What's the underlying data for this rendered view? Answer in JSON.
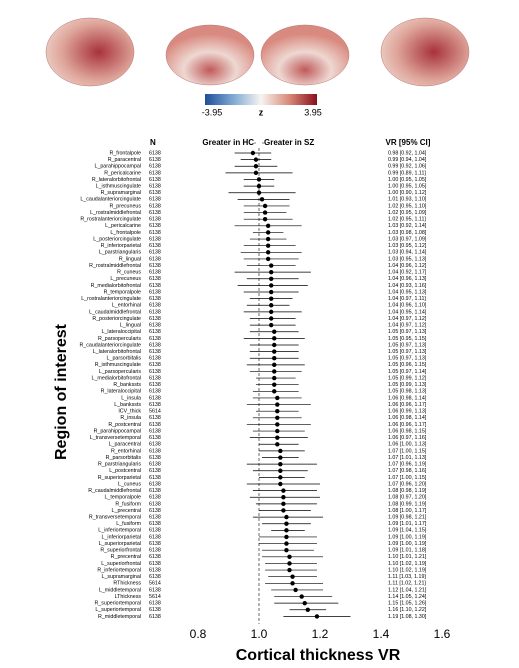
{
  "chart_data": {
    "type": "forest",
    "n_header": "N",
    "left_header": "Greater in HC",
    "right_header": "Greater in SZ",
    "ci_header": "VR [95% CI]",
    "ylabel": "Region of interest",
    "xlabel": "Cortical thickness VR",
    "colorbar": {
      "min": -3.95,
      "max": 3.95,
      "label": "z"
    },
    "xlim": [
      0.7,
      1.6
    ],
    "xticks": [
      0.8,
      {
        "value": 1,
        "label": "1.0"
      },
      1.2,
      1.4,
      1.6
    ],
    "refline": 1,
    "color": "#000000",
    "categories": [
      "R_frontalpole",
      "R_paracentral",
      "L_parahippocampal",
      "R_pericalcarine",
      "R_lateralorbitofrontal",
      "L_isthmuscingulate",
      "R_supramarginal",
      "L_caudalanteriorcingulate",
      "R_precuneus",
      "L_rostralmiddlefrontal",
      "R_rostralanteriorcingulate",
      "L_pericalcarine",
      "L_frontalpole",
      "L_posteriorcingulate",
      "R_inferiorparietal",
      "L_parstriangularis",
      "R_lingual",
      "R_rostralmiddlefrontal",
      "R_cuneus",
      "L_precuneus",
      "R_medialorbitofrontal",
      "R_temporalpole",
      "L_rostralanteriorcingulate",
      "L_entorhinal",
      "L_caudalmiddlefrontal",
      "R_posteriorcingulate",
      "L_lingual",
      "L_lateraloccipital",
      "R_parsopercularis",
      "R_caudalanteriorcingulate",
      "L_lateralorbitofrontal",
      "L_parsorbitalis",
      "R_isthmuscingulate",
      "L_parsopercularis",
      "L_medialorbitofrontal",
      "R_bankssts",
      "R_lateraloccipital",
      "L_insula",
      "L_bankssts",
      "ICV_thick",
      "R_insula",
      "R_postcentral",
      "R_parahippocampal",
      "L_transversetemporal",
      "L_paracentral",
      "R_entorhinal",
      "R_parsorbitalis",
      "R_parstriangularis",
      "L_postcentral",
      "R_superiorparietal",
      "L_cuneus",
      "R_caudalmiddlefrontal",
      "L_temporalpole",
      "R_fusiform",
      "L_precentral",
      "R_transversetemporal",
      "L_fusiform",
      "L_inferiortemporal",
      "L_inferiorparietal",
      "L_superiorparietal",
      "R_superiorfrontal",
      "R_precentral",
      "L_superiorfrontal",
      "R_inferiortemporal",
      "L_supramarginal",
      "RThickness",
      "L_middletemporal",
      "LThickness",
      "R_superiortemporal",
      "L_superiortemporal",
      "R_middletemporal"
    ],
    "n": [
      6138,
      6138,
      6138,
      6138,
      6138,
      6138,
      6138,
      6138,
      6138,
      6138,
      6138,
      6138,
      6138,
      6138,
      6138,
      6138,
      6138,
      6138,
      6138,
      6138,
      6138,
      6138,
      6138,
      6138,
      6138,
      6138,
      6138,
      6138,
      6138,
      6138,
      6138,
      6138,
      6138,
      6138,
      6138,
      6138,
      6138,
      6138,
      6138,
      5614,
      6138,
      6138,
      6138,
      6138,
      6138,
      6138,
      6138,
      6138,
      6138,
      6138,
      6138,
      6138,
      6138,
      6138,
      6138,
      6138,
      6138,
      6138,
      6138,
      6138,
      6138,
      6138,
      6138,
      6138,
      6138,
      5614,
      6138,
      5614,
      6138,
      6138,
      6138
    ],
    "values": [
      0.98,
      0.99,
      0.99,
      0.99,
      1.0,
      1.0,
      1.0,
      1.01,
      1.02,
      1.02,
      1.02,
      1.03,
      1.03,
      1.03,
      1.03,
      1.03,
      1.03,
      1.04,
      1.04,
      1.04,
      1.04,
      1.04,
      1.04,
      1.04,
      1.04,
      1.04,
      1.04,
      1.05,
      1.05,
      1.05,
      1.05,
      1.05,
      1.05,
      1.05,
      1.05,
      1.05,
      1.05,
      1.06,
      1.06,
      1.06,
      1.06,
      1.06,
      1.06,
      1.06,
      1.06,
      1.07,
      1.07,
      1.07,
      1.07,
      1.07,
      1.07,
      1.08,
      1.08,
      1.08,
      1.08,
      1.09,
      1.09,
      1.09,
      1.09,
      1.09,
      1.09,
      1.1,
      1.1,
      1.1,
      1.11,
      1.11,
      1.12,
      1.14,
      1.15,
      1.16,
      1.19
    ],
    "ci_low": [
      0.92,
      0.94,
      0.92,
      0.89,
      0.95,
      0.95,
      0.9,
      0.93,
      0.95,
      0.95,
      0.95,
      0.92,
      0.98,
      0.97,
      0.95,
      0.94,
      0.95,
      0.96,
      0.92,
      0.96,
      0.93,
      0.95,
      0.97,
      0.96,
      0.95,
      0.97,
      0.97,
      0.97,
      0.95,
      0.97,
      0.97,
      0.97,
      0.96,
      0.97,
      0.99,
      0.99,
      0.98,
      0.98,
      0.96,
      0.99,
      0.98,
      0.96,
      0.98,
      0.97,
      1.0,
      1.0,
      1.01,
      0.96,
      0.98,
      1.0,
      0.96,
      0.98,
      0.97,
      0.99,
      1.0,
      0.98,
      1.01,
      1.04,
      1.0,
      1.0,
      1.01,
      1.01,
      1.02,
      1.02,
      1.03,
      1.02,
      1.04,
      1.05,
      1.05,
      1.1,
      1.08
    ],
    "ci_high": [
      1.04,
      1.04,
      1.06,
      1.11,
      1.05,
      1.05,
      1.12,
      1.1,
      1.1,
      1.09,
      1.11,
      1.14,
      1.08,
      1.09,
      1.12,
      1.14,
      1.13,
      1.12,
      1.17,
      1.13,
      1.16,
      1.13,
      1.11,
      1.1,
      1.14,
      1.12,
      1.12,
      1.13,
      1.15,
      1.13,
      1.13,
      1.13,
      1.15,
      1.14,
      1.12,
      1.13,
      1.13,
      1.14,
      1.17,
      1.13,
      1.14,
      1.17,
      1.15,
      1.16,
      1.13,
      1.15,
      1.13,
      1.19,
      1.16,
      1.15,
      1.2,
      1.19,
      1.2,
      1.19,
      1.17,
      1.21,
      1.17,
      1.15,
      1.19,
      1.19,
      1.18,
      1.21,
      1.19,
      1.19,
      1.19,
      1.21,
      1.21,
      1.24,
      1.26,
      1.22,
      1.3
    ],
    "value_labels": [
      "0.98 [0.92, 1.04]",
      "0.99 [0.94, 1.04]",
      "0.99 [0.92, 1.06]",
      "0.99 [0.89, 1.11]",
      "1.00 [0.95, 1.05]",
      "1.00 [0.95, 1.05]",
      "1.00 [0.90, 1.12]",
      "1.01 [0.93, 1.10]",
      "1.02 [0.95, 1.10]",
      "1.02 [0.95, 1.09]",
      "1.02 [0.95, 1.11]",
      "1.03 [0.92, 1.14]",
      "1.03 [0.98, 1.08]",
      "1.03 [0.97, 1.09]",
      "1.03 [0.95, 1.12]",
      "1.03 [0.94, 1.14]",
      "1.03 [0.95, 1.13]",
      "1.04 [0.96, 1.12]",
      "1.04 [0.92, 1.17]",
      "1.04 [0.96, 1.13]",
      "1.04 [0.93, 1.16]",
      "1.04 [0.95, 1.13]",
      "1.04 [0.97, 1.11]",
      "1.04 [0.96, 1.10]",
      "1.04 [0.95, 1.14]",
      "1.04 [0.97, 1.12]",
      "1.04 [0.97, 1.12]",
      "1.05 [0.97, 1.13]",
      "1.05 [0.95, 1.15]",
      "1.05 [0.97, 1.13]",
      "1.05 [0.97, 1.13]",
      "1.05 [0.97, 1.13]",
      "1.05 [0.96, 1.15]",
      "1.05 [0.97, 1.14]",
      "1.05 [0.99, 1.12]",
      "1.05 [0.99, 1.13]",
      "1.05 [0.98, 1.13]",
      "1.06 [0.98, 1.14]",
      "1.06 [0.96, 1.17]",
      "1.06 [0.99, 1.13]",
      "1.06 [0.98, 1.14]",
      "1.06 [0.96, 1.17]",
      "1.06 [0.98, 1.15]",
      "1.06 [0.97, 1.16]",
      "1.06 [1.00, 1.13]",
      "1.07 [1.00, 1.15]",
      "1.07 [1.01, 1.13]",
      "1.07 [0.96, 1.19]",
      "1.07 [0.98, 1.16]",
      "1.07 [1.00, 1.15]",
      "1.07 [0.96, 1.20]",
      "1.08 [0.98, 1.19]",
      "1.08 [0.97, 1.20]",
      "1.08 [0.99, 1.19]",
      "1.08 [1.00, 1.17]",
      "1.09 [0.98, 1.21]",
      "1.09 [1.01, 1.17]",
      "1.09 [1.04, 1.15]",
      "1.09 [1.00, 1.19]",
      "1.09 [1.00, 1.19]",
      "1.09 [1.01, 1.18]",
      "1.10 [1.01, 1.21]",
      "1.10 [1.02, 1.19]",
      "1.10 [1.02, 1.19]",
      "1.11 [1.03, 1.19]",
      "1.11 [1.02, 1.21]",
      "1.12 [1.04, 1.21]",
      "1.14 [1.05, 1.24]",
      "1.15 [1.05, 1.26]",
      "1.16 [1.10, 1.22]",
      "1.19 [1.08, 1.30]"
    ]
  }
}
